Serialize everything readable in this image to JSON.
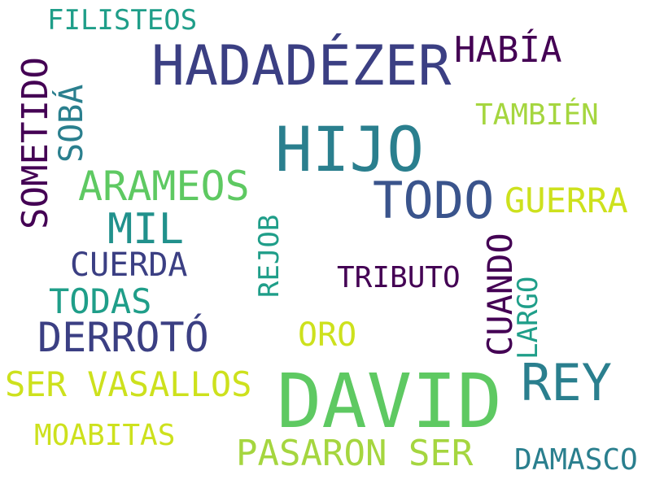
{
  "colors": {
    "background": "#ffffff",
    "deep_purple": "#440154",
    "indigo": "#3b3f83",
    "slate_blue": "#3a548c",
    "teal": "#2a7f8e",
    "teal_green": "#1f9e89",
    "green": "#5ec962",
    "lime": "#a5d63f",
    "yellow_green": "#cde11d"
  },
  "words": {
    "filisteos": {
      "text": "FILISTEOS",
      "color": "#1f9e89"
    },
    "hadadezer": {
      "text": "HADADÉZER",
      "color": "#3b3f83"
    },
    "habia": {
      "text": "HABÍA",
      "color": "#440154"
    },
    "tambien": {
      "text": "TAMBIÉN",
      "color": "#a5d63f"
    },
    "hijo": {
      "text": "HIJO",
      "color": "#2a7f8e"
    },
    "todo": {
      "text": "TODO",
      "color": "#3a548c"
    },
    "arameos": {
      "text": "ARAMEOS",
      "color": "#5ec962"
    },
    "guerra": {
      "text": "GUERRA",
      "color": "#cde11d"
    },
    "mil": {
      "text": "MIL",
      "color": "#21918c"
    },
    "cuerda": {
      "text": "CUERDA",
      "color": "#3b3f83"
    },
    "tributo": {
      "text": "TRIBUTO",
      "color": "#440154"
    },
    "todas": {
      "text": "TODAS",
      "color": "#1f9e89"
    },
    "derroto": {
      "text": "DERROTÓ",
      "color": "#3b3f83"
    },
    "oro": {
      "text": "ORO",
      "color": "#cde11d"
    },
    "ser_vasallos": {
      "text": "SER VASALLOS",
      "color": "#cde11d"
    },
    "david": {
      "text": "DAVID",
      "color": "#5ec962"
    },
    "rey": {
      "text": "REY",
      "color": "#2a7f8e"
    },
    "moabitas": {
      "text": "MOABITAS",
      "color": "#cde11d"
    },
    "pasaron_ser": {
      "text": "PASARON SER",
      "color": "#a5d63f"
    },
    "damasco": {
      "text": "DAMASCO",
      "color": "#2a7f8e"
    },
    "sometido": {
      "text": "SOMETIDO",
      "color": "#440154"
    },
    "soba": {
      "text": "SOBÁ",
      "color": "#2a7f8e"
    },
    "rejob": {
      "text": "REJOB",
      "color": "#1f9e89"
    },
    "cuando": {
      "text": "CUANDO",
      "color": "#440154"
    },
    "largo": {
      "text": "LARGO",
      "color": "#1f9e89"
    }
  }
}
